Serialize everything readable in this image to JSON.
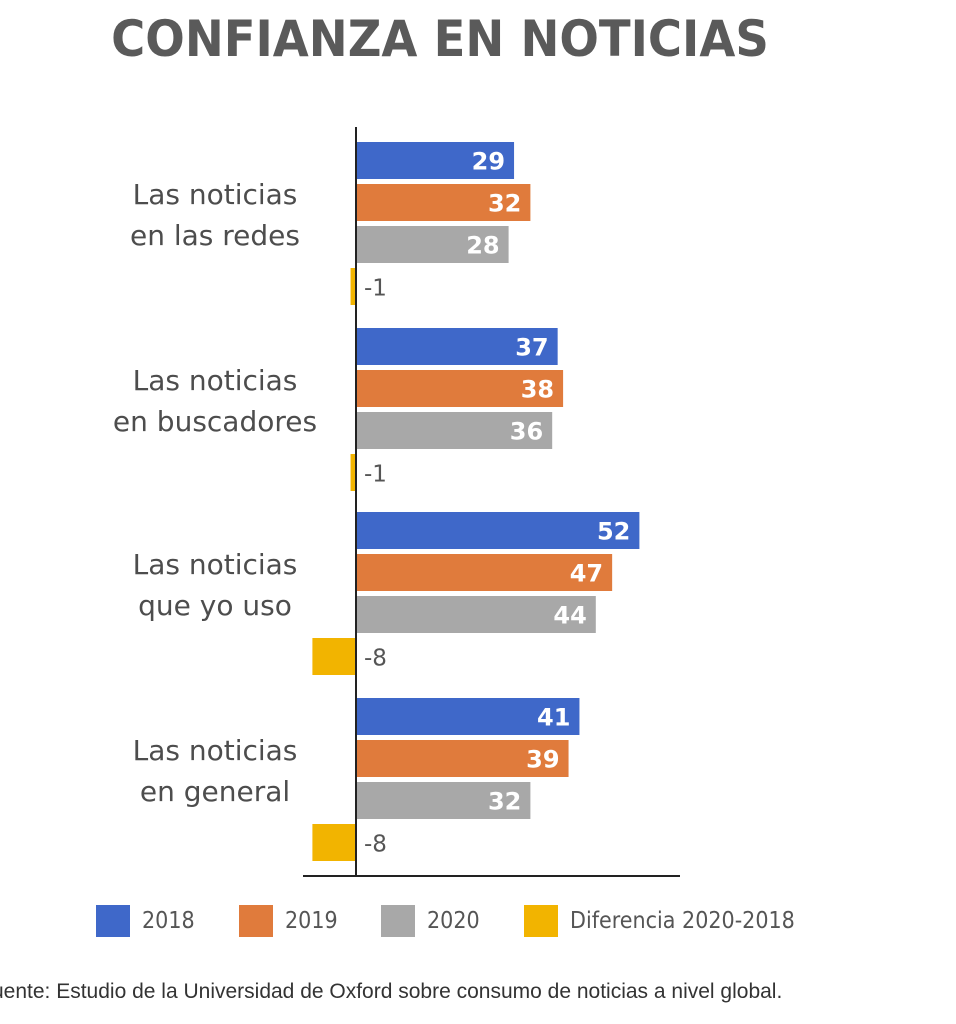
{
  "title": "CONFIANZA EN NOTICIAS",
  "source": "uente: Estudio de la Universidad de Oxford sobre consumo de noticias a nivel global.",
  "colors": {
    "2018": "#3f68c9",
    "2019": "#e07b3c",
    "2020": "#a8a8a8",
    "diff": "#f2b400",
    "category_text": "#4d4d4d",
    "value_text": "#ffffff",
    "diff_text": "#555555",
    "axis": "#222222"
  },
  "legend": [
    {
      "label": "2018",
      "color": "#3f68c9"
    },
    {
      "label": "2019",
      "color": "#e07b3c"
    },
    {
      "label": "2020",
      "color": "#a8a8a8"
    },
    {
      "label": "Diferencia 2020-2018",
      "color": "#f2b400"
    }
  ],
  "chart_data": {
    "type": "bar",
    "orientation": "horizontal",
    "title": "CONFIANZA EN NOTICIAS",
    "categories": [
      [
        "Las noticias",
        "en las redes"
      ],
      [
        "Las noticias",
        "en buscadores"
      ],
      [
        "Las noticias",
        "que yo uso"
      ],
      [
        "Las noticias",
        "en general"
      ]
    ],
    "series": [
      {
        "name": "2018",
        "values": [
          29,
          37,
          52,
          41
        ]
      },
      {
        "name": "2019",
        "values": [
          32,
          38,
          47,
          39
        ]
      },
      {
        "name": "2020",
        "values": [
          28,
          36,
          44,
          32
        ]
      },
      {
        "name": "Diferencia 2020-2018",
        "values": [
          -1,
          -1,
          -8,
          -8
        ]
      }
    ],
    "value_labels": [
      [
        "29",
        "37",
        "52",
        "41"
      ],
      [
        "32",
        "38",
        "47",
        "39"
      ],
      [
        "28",
        "36",
        "44",
        "32"
      ],
      [
        "-1",
        "-1",
        "-8",
        "-8"
      ]
    ],
    "xlim": [
      -8,
      60
    ],
    "legend_position": "bottom",
    "grid": false
  }
}
